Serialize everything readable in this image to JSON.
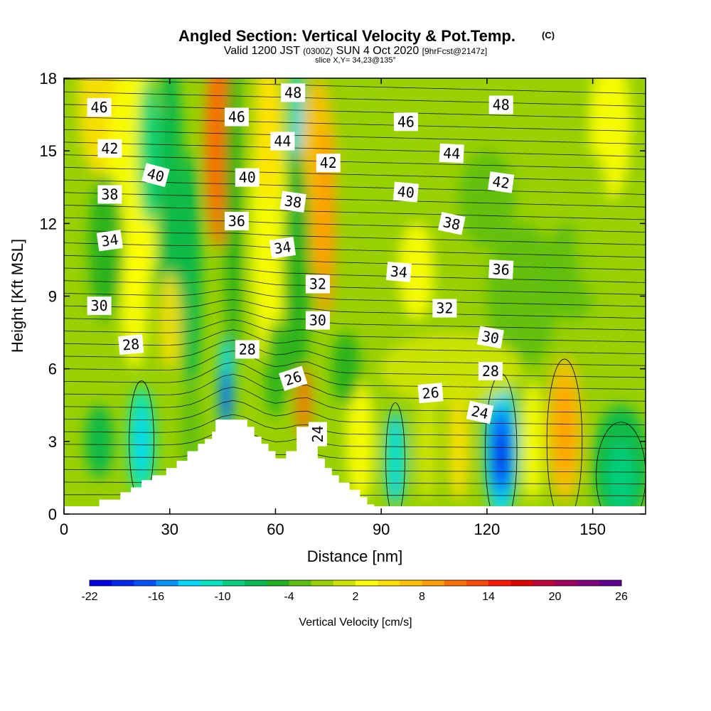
{
  "chart_data": {
    "type": "heatmap",
    "title": "Angled Section: Vertical Velocity & Pot.Temp.",
    "title_mark": "(C)",
    "subtitle_parts": [
      "Valid 1200 JST",
      "(0300Z)",
      "SUN 4 Oct 2020",
      "[9hrFcst@2147z]"
    ],
    "slice_label": "slice X,Y= 34,23@135°",
    "xlabel": "Distance [nm]",
    "ylabel": "Height [Kft MSL]",
    "xlim": [
      0,
      165
    ],
    "ylim": [
      0,
      18
    ],
    "x_ticks": [
      0,
      30,
      60,
      90,
      120,
      150
    ],
    "y_ticks": [
      0,
      3,
      6,
      9,
      12,
      15,
      18
    ],
    "colorbar": {
      "label": "Vertical Velocity [cm/s]",
      "tick_labels": [
        "-22",
        "-16",
        "-10",
        "-4",
        "2",
        "8",
        "14",
        "20",
        "26"
      ],
      "colors": [
        "#0000e6",
        "#0028f0",
        "#0050ff",
        "#0090ff",
        "#00d8ff",
        "#00e6c0",
        "#00cf80",
        "#00b850",
        "#20b020",
        "#5cbf10",
        "#98d000",
        "#d0e400",
        "#ffff00",
        "#ffe000",
        "#ffc000",
        "#ff9c00",
        "#ff7000",
        "#ff4800",
        "#ff1800",
        "#e00000",
        "#c0003c",
        "#a00060",
        "#800080",
        "#600090"
      ]
    },
    "terrain": [
      [
        0,
        0
      ],
      [
        10,
        0.3
      ],
      [
        10,
        0.6
      ],
      [
        16,
        0.6
      ],
      [
        16,
        0.9
      ],
      [
        19,
        0.9
      ],
      [
        19,
        1.1
      ],
      [
        22,
        1.1
      ],
      [
        22,
        1.4
      ],
      [
        25,
        1.4
      ],
      [
        25,
        1.6
      ],
      [
        29,
        1.6
      ],
      [
        29,
        1.9
      ],
      [
        32,
        1.9
      ],
      [
        32,
        2.2
      ],
      [
        35,
        2.2
      ],
      [
        35,
        2.6
      ],
      [
        38,
        2.6
      ],
      [
        38,
        2.9
      ],
      [
        40,
        2.9
      ],
      [
        40,
        3.1
      ],
      [
        42,
        3.1
      ],
      [
        42,
        3.4
      ],
      [
        43,
        3.4
      ],
      [
        43,
        3.9
      ],
      [
        52,
        3.9
      ],
      [
        52,
        3.6
      ],
      [
        54,
        3.6
      ],
      [
        54,
        3.2
      ],
      [
        56,
        3.2
      ],
      [
        56,
        2.9
      ],
      [
        58,
        2.9
      ],
      [
        58,
        2.6
      ],
      [
        60,
        2.6
      ],
      [
        60,
        2.3
      ],
      [
        63,
        2.3
      ],
      [
        63,
        2.6
      ],
      [
        66,
        2.6
      ],
      [
        66,
        3.6
      ],
      [
        70,
        3.6
      ],
      [
        70,
        2.9
      ],
      [
        72,
        2.9
      ],
      [
        72,
        2.3
      ],
      [
        74,
        2.3
      ],
      [
        74,
        1.9
      ],
      [
        76,
        1.9
      ],
      [
        76,
        1.6
      ],
      [
        78,
        1.6
      ],
      [
        78,
        1.3
      ],
      [
        81,
        1.3
      ],
      [
        81,
        1.0
      ],
      [
        84,
        1.0
      ],
      [
        84,
        0.7
      ],
      [
        86,
        0.7
      ],
      [
        86,
        0.4
      ],
      [
        88,
        0.4
      ],
      [
        88,
        0.3
      ],
      [
        165,
        0.3
      ],
      [
        165,
        0
      ]
    ],
    "contour_labels": [
      {
        "text": "46",
        "x": 10,
        "y": 16.8,
        "angle": 0
      },
      {
        "text": "42",
        "x": 13,
        "y": 15.1,
        "angle": 0
      },
      {
        "text": "40",
        "x": 26,
        "y": 14.0,
        "angle": 15
      },
      {
        "text": "38",
        "x": 13,
        "y": 13.2,
        "angle": 0
      },
      {
        "text": "34",
        "x": 13,
        "y": 11.3,
        "angle": -8
      },
      {
        "text": "30",
        "x": 10,
        "y": 8.6,
        "angle": 0
      },
      {
        "text": "28",
        "x": 19,
        "y": 7.0,
        "angle": -5
      },
      {
        "text": "48",
        "x": 65,
        "y": 17.4,
        "angle": 0
      },
      {
        "text": "46",
        "x": 49,
        "y": 16.4,
        "angle": 0
      },
      {
        "text": "44",
        "x": 62,
        "y": 15.4,
        "angle": 0
      },
      {
        "text": "40",
        "x": 52,
        "y": 13.9,
        "angle": 0
      },
      {
        "text": "42",
        "x": 75,
        "y": 14.5,
        "angle": 0
      },
      {
        "text": "38",
        "x": 65,
        "y": 12.9,
        "angle": 8
      },
      {
        "text": "36",
        "x": 49,
        "y": 12.1,
        "angle": 0
      },
      {
        "text": "34",
        "x": 62,
        "y": 11.0,
        "angle": -8
      },
      {
        "text": "32",
        "x": 72,
        "y": 9.5,
        "angle": 0
      },
      {
        "text": "30",
        "x": 72,
        "y": 8.0,
        "angle": 0
      },
      {
        "text": "28",
        "x": 52,
        "y": 6.8,
        "angle": 0
      },
      {
        "text": "26",
        "x": 65,
        "y": 5.6,
        "angle": -18
      },
      {
        "text": "24",
        "x": 72,
        "y": 3.3,
        "angle": -90
      },
      {
        "text": "48",
        "x": 124,
        "y": 16.9,
        "angle": 0
      },
      {
        "text": "46",
        "x": 97,
        "y": 16.2,
        "angle": 0
      },
      {
        "text": "44",
        "x": 110,
        "y": 14.9,
        "angle": 3
      },
      {
        "text": "42",
        "x": 124,
        "y": 13.7,
        "angle": 8
      },
      {
        "text": "40",
        "x": 97,
        "y": 13.3,
        "angle": 5
      },
      {
        "text": "38",
        "x": 110,
        "y": 12.0,
        "angle": 12
      },
      {
        "text": "36",
        "x": 124,
        "y": 10.1,
        "angle": 3
      },
      {
        "text": "34",
        "x": 95,
        "y": 10.0,
        "angle": 5
      },
      {
        "text": "32",
        "x": 108,
        "y": 8.5,
        "angle": 0
      },
      {
        "text": "30",
        "x": 121,
        "y": 7.3,
        "angle": 10
      },
      {
        "text": "28",
        "x": 121,
        "y": 5.9,
        "angle": 0
      },
      {
        "text": "26",
        "x": 104,
        "y": 5.0,
        "angle": -5
      },
      {
        "text": "24",
        "x": 118,
        "y": 4.2,
        "angle": 12
      }
    ]
  }
}
